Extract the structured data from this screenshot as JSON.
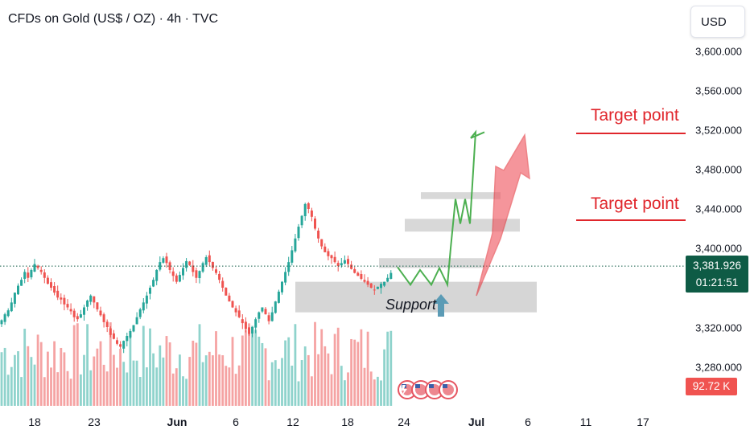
{
  "header": {
    "title": "CFDs on Gold (US$ / OZ) · 4h · TVC",
    "currency_button": "USD"
  },
  "price_axis": {
    "ticks": [
      "3,600.000",
      "3,560.000",
      "3,520.000",
      "3,480.000",
      "3,440.000",
      "3,400.000",
      "3,320.000",
      "3,280.000"
    ],
    "tick_values": [
      3600,
      3560,
      3520,
      3480,
      3440,
      3400,
      3320,
      3280
    ]
  },
  "time_axis": {
    "ticks": [
      "18",
      "23",
      "Jun",
      "6",
      "12",
      "18",
      "24",
      "Jul",
      "6",
      "11",
      "17"
    ],
    "bold": [
      "Jun",
      "Jul"
    ]
  },
  "last_price": {
    "value": "3,381.926",
    "countdown": "01:21:51"
  },
  "volume_label": "92.72 K",
  "annotations": {
    "target_1": "Target point",
    "target_2": "Target point",
    "support": "Support"
  },
  "colors": {
    "up": "#26a69a",
    "down": "#ef5350",
    "target": "#e0262c",
    "projection": "#4caf50",
    "arrow": "#f0505a",
    "support_zone": "#cfcfcf",
    "support_arrow": "#5b9bb5",
    "price_tag": "#0e5b45"
  },
  "chart_data": {
    "type": "candlestick",
    "symbol": "CFDs on Gold (US$ / OZ)",
    "timeframe": "4h",
    "source": "TVC",
    "ylim": [
      3250,
      3635
    ],
    "grid": false,
    "path_closes": [
      3327,
      3333,
      3337,
      3345,
      3355,
      3362,
      3368,
      3376,
      3370,
      3378,
      3384,
      3380,
      3376,
      3370,
      3364,
      3360,
      3355,
      3350,
      3348,
      3343,
      3340,
      3336,
      3330,
      3328,
      3333,
      3340,
      3347,
      3352,
      3345,
      3338,
      3332,
      3325,
      3320,
      3312,
      3308,
      3303,
      3300,
      3306,
      3311,
      3316,
      3322,
      3330,
      3338,
      3345,
      3352,
      3360,
      3368,
      3378,
      3386,
      3390,
      3385,
      3378,
      3372,
      3366,
      3373,
      3380,
      3387,
      3383,
      3376,
      3370,
      3377,
      3385,
      3391,
      3386,
      3380,
      3375,
      3368,
      3360,
      3352,
      3346,
      3340,
      3335,
      3330,
      3324,
      3318,
      3313,
      3320,
      3328,
      3335,
      3340,
      3333,
      3326,
      3335,
      3346,
      3356,
      3366,
      3376,
      3386,
      3398,
      3410,
      3422,
      3433,
      3445,
      3440,
      3432,
      3420,
      3410,
      3402,
      3396,
      3392,
      3390,
      3386,
      3382,
      3385,
      3388,
      3384,
      3379,
      3375,
      3372,
      3369,
      3366,
      3363,
      3360,
      3358,
      3361,
      3364,
      3366,
      3370,
      3375
    ],
    "last_price": 3381.926,
    "projection_path": [
      3381,
      3363,
      3378,
      3363,
      3380,
      3363,
      3400,
      3450,
      3425,
      3450,
      3425,
      3518,
      3512,
      3518
    ],
    "zones": [
      {
        "label": "Support",
        "from": 3335,
        "to": 3366
      },
      {
        "from": 3380,
        "to": 3390
      },
      {
        "from": 3417,
        "to": 3430
      },
      {
        "from": 3450,
        "to": 3457
      }
    ],
    "targets": [
      {
        "label": "Target point",
        "value": 3520
      },
      {
        "label": "Target point",
        "value": 3430
      }
    ],
    "volume_last": "92.72 K"
  }
}
